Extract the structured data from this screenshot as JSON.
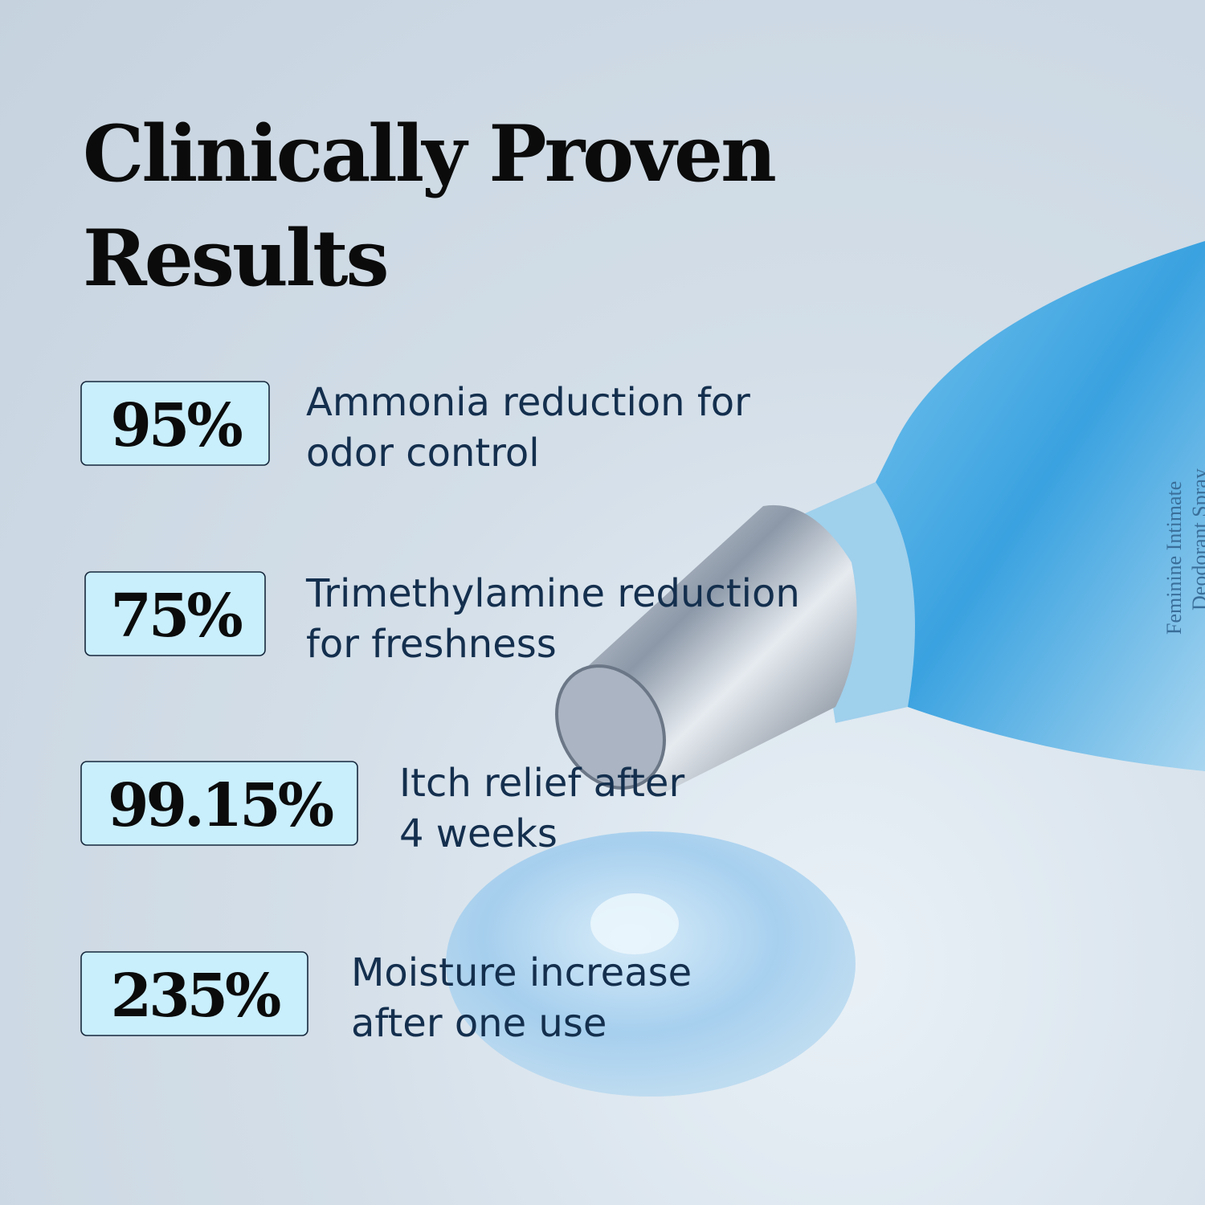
{
  "header": {
    "title_lines": [
      "Clinically Proven",
      "Results"
    ]
  },
  "stats": [
    {
      "value": "95%",
      "lines": [
        "Ammonia reduction for",
        "odor control"
      ]
    },
    {
      "value": "75%",
      "lines": [
        "Trimethylamine reduction",
        "for freshness"
      ]
    },
    {
      "value": "99.15%",
      "lines": [
        "Itch relief after",
        "4 weeks"
      ]
    },
    {
      "value": "235%",
      "lines": [
        "Moisture increase",
        "after one use"
      ]
    }
  ],
  "product": {
    "label_lines": [
      "Feminine Intimate",
      "Deodorant Spray"
    ]
  }
}
